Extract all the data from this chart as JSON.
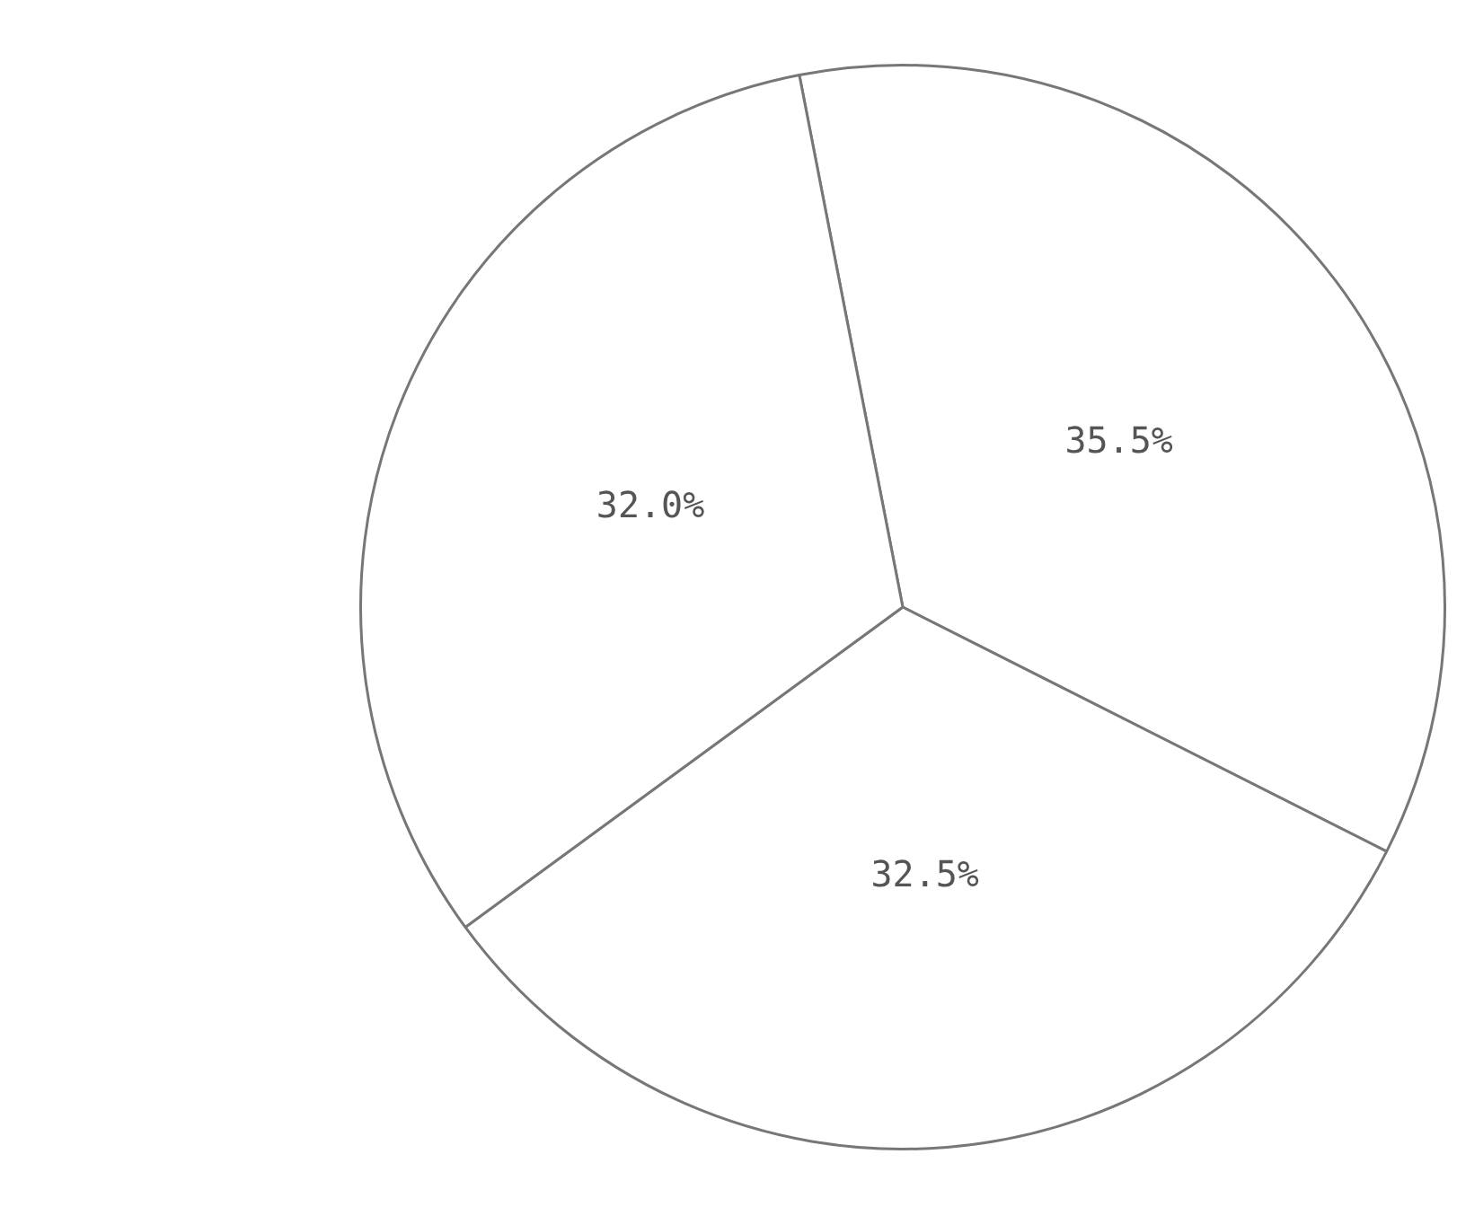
{
  "chart_data": {
    "type": "pie",
    "categories": [
      null,
      null,
      null
    ],
    "values": [
      35.5,
      32.5,
      32.0
    ],
    "colors": [
      "#ffffff",
      "#ffffff",
      "#ffffff"
    ],
    "value_labels": [
      "35.5%",
      "32.5%",
      "32.0%"
    ],
    "legend": false
  }
}
